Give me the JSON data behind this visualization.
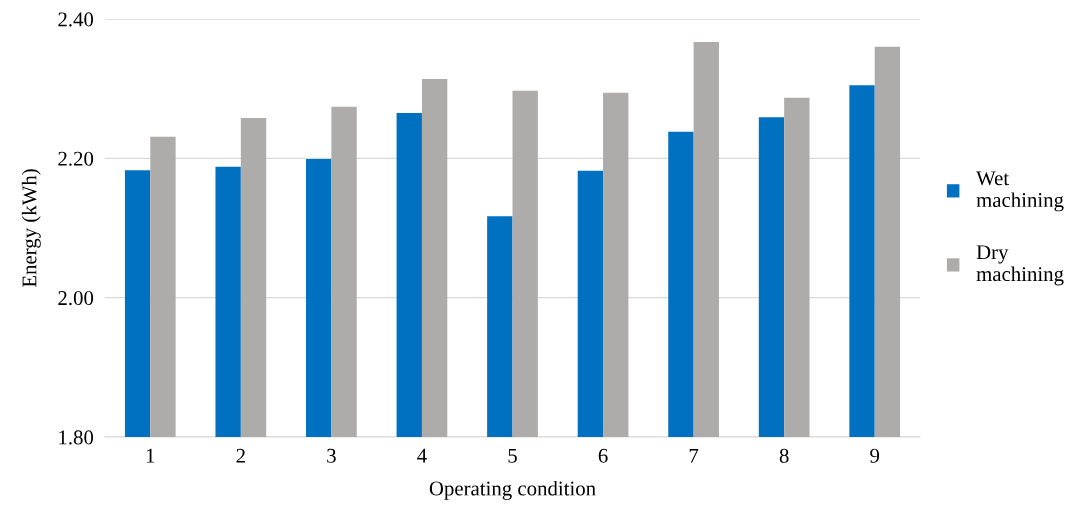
{
  "chart_data": {
    "type": "bar",
    "xlabel": "Operating condition",
    "ylabel": "Energy (kWh)",
    "categories": [
      "1",
      "2",
      "3",
      "4",
      "5",
      "6",
      "7",
      "8",
      "9"
    ],
    "series": [
      {
        "name": "Wet machining",
        "color": "#0070c0",
        "values": [
          2.183,
          2.188,
          2.199,
          2.265,
          2.117,
          2.182,
          2.238,
          2.259,
          2.305
        ]
      },
      {
        "name": "Dry machining",
        "color": "#aeabab",
        "values": [
          2.231,
          2.258,
          2.274,
          2.314,
          2.297,
          2.294,
          2.367,
          2.287,
          2.36
        ]
      }
    ],
    "ylim": [
      1.8,
      2.4
    ],
    "yticks": [
      {
        "value": 1.8,
        "label": "1.80"
      },
      {
        "value": 2.0,
        "label": "2.00"
      },
      {
        "value": 2.2,
        "label": "2.20"
      },
      {
        "value": 2.4,
        "label": "2.40"
      }
    ],
    "grid": "y",
    "legend": "right"
  }
}
